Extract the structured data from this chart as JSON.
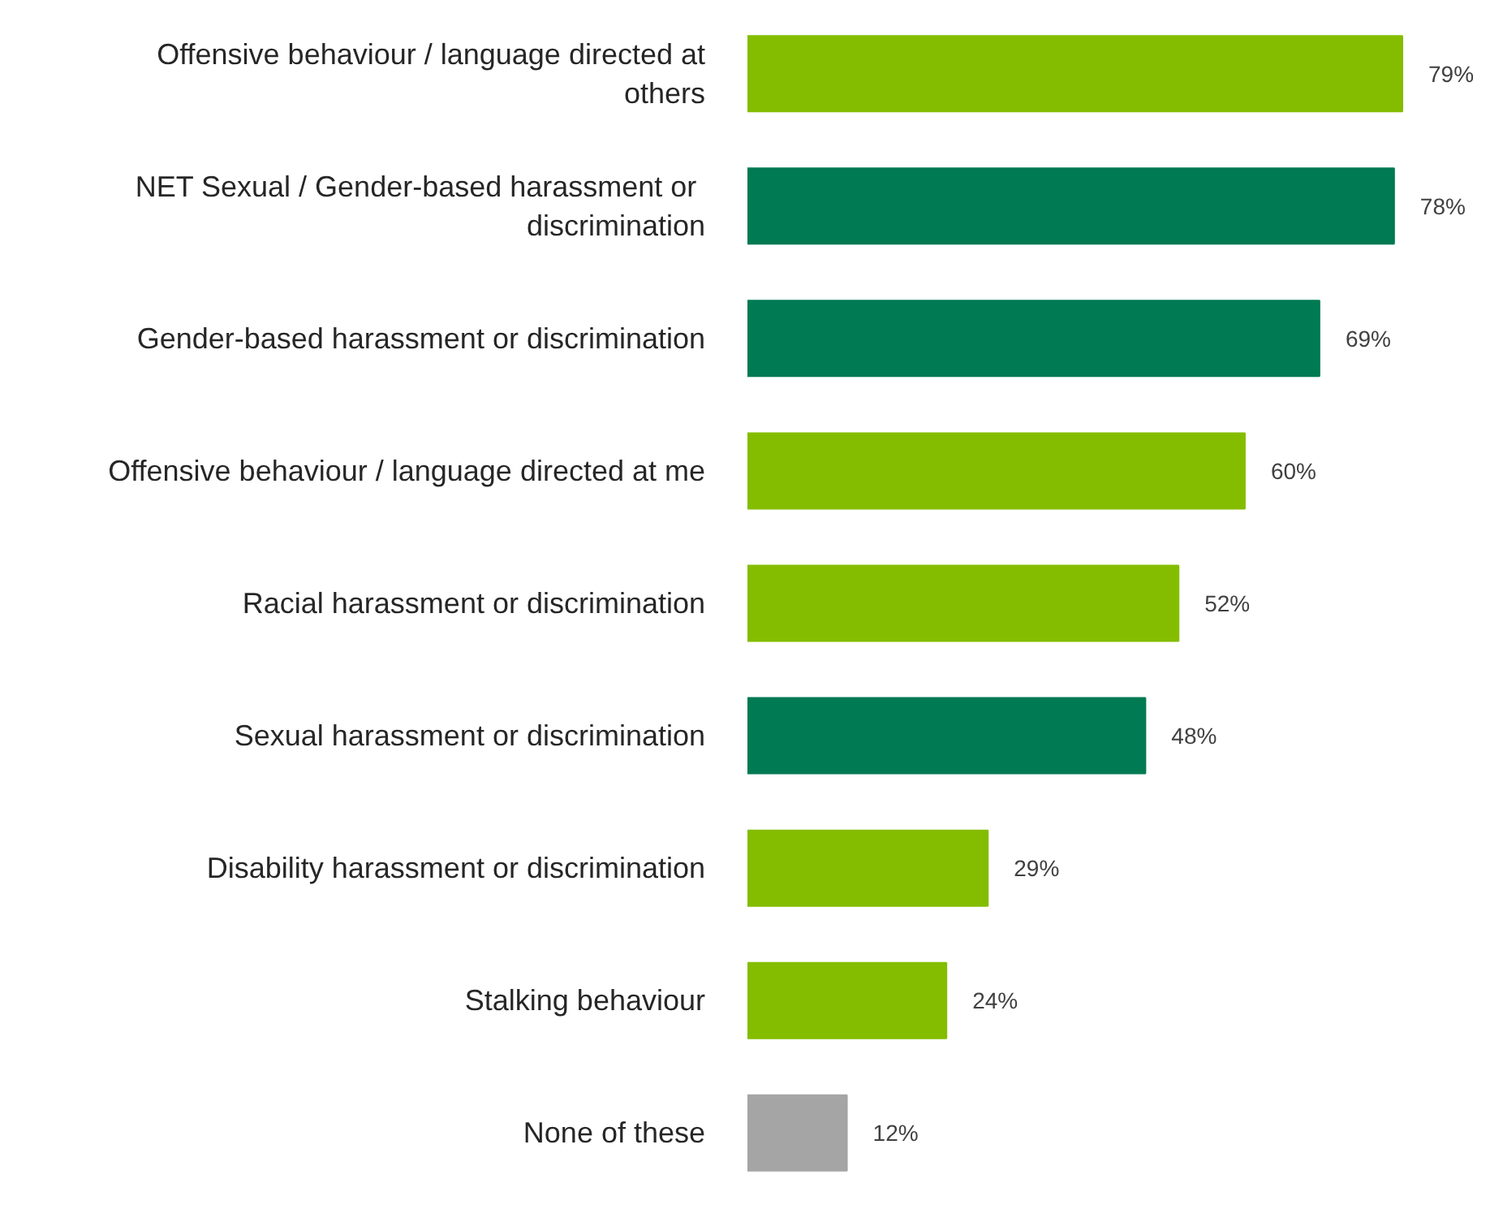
{
  "chart_data": {
    "type": "bar",
    "orientation": "horizontal",
    "categories": [
      "Offensive behaviour / language directed at others",
      "NET Sexual / Gender-based  harassment or discrimination",
      "Gender-based harassment or discrimination",
      "Offensive behaviour / language directed at me",
      "Racial harassment or discrimination",
      "Sexual harassment or discrimination",
      "Disability harassment or discrimination",
      "Stalking behaviour",
      "None of these"
    ],
    "values": [
      79,
      78,
      69,
      60,
      52,
      48,
      29,
      24,
      12
    ],
    "colors": [
      "#84bd00",
      "#007a53",
      "#007a53",
      "#84bd00",
      "#84bd00",
      "#007a53",
      "#84bd00",
      "#84bd00",
      "#a5a5a5"
    ],
    "value_labels": [
      "79%",
      "78%",
      "69%",
      "60%",
      "52%",
      "48%",
      "29%",
      "24%",
      "12%"
    ],
    "grid": false
  }
}
